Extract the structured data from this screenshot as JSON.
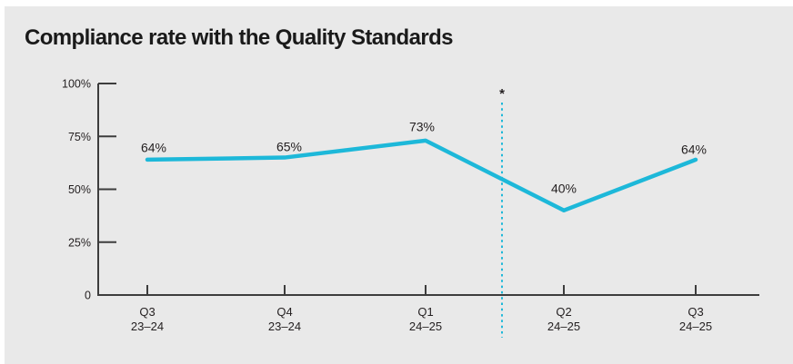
{
  "title": "Compliance rate with the Quality Standards",
  "chart_data": {
    "type": "line",
    "title": "Compliance rate with the Quality Standards",
    "categories": [
      {
        "quarter": "Q3",
        "year": "23–24"
      },
      {
        "quarter": "Q4",
        "year": "23–24"
      },
      {
        "quarter": "Q1",
        "year": "24–25"
      },
      {
        "quarter": "Q2",
        "year": "24–25"
      },
      {
        "quarter": "Q3",
        "year": "24–25"
      }
    ],
    "values": [
      64,
      65,
      73,
      40,
      64
    ],
    "point_labels": [
      "64%",
      "65%",
      "73%",
      "40%",
      "64%"
    ],
    "y_ticks": [
      {
        "value": 100,
        "label": "100%"
      },
      {
        "value": 75,
        "label": "75%"
      },
      {
        "value": 50,
        "label": "50%"
      },
      {
        "value": 25,
        "label": "25%"
      },
      {
        "value": 0,
        "label": "0"
      }
    ],
    "ylim": [
      0,
      100
    ],
    "grid": false,
    "legend": null,
    "annotation": {
      "symbol": "*",
      "type": "dotted-vertical-separator",
      "between_categories": [
        "Q1 24–25",
        "Q2 24–25"
      ]
    },
    "colors": {
      "line": "#1db8d9",
      "axis": "#3d3d3d",
      "text": "#231f20",
      "annotation_text": "#231f20",
      "panel_background": "#e9e9e9",
      "page_background": "#ffffff"
    }
  }
}
